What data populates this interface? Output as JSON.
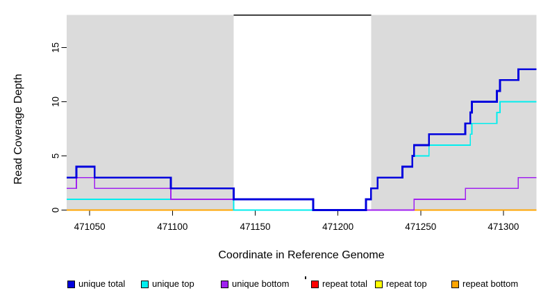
{
  "chart_data": {
    "type": "line",
    "subtype": "step",
    "title": "",
    "xlabel": "Coordinate in Reference Genome",
    "ylabel": "Read Coverage Depth",
    "xlim": [
      471036,
      471320
    ],
    "ylim": [
      0,
      18
    ],
    "x_ticks": [
      471050,
      471100,
      471150,
      471200,
      471250,
      471300
    ],
    "y_ticks": [
      0,
      5,
      10,
      15
    ],
    "grid": false,
    "background_shading": {
      "color": "#DBDBDB",
      "regions": [
        [
          471036,
          471137
        ],
        [
          471220,
          471320
        ]
      ]
    },
    "top_segment": {
      "y": 18,
      "x": [
        471137,
        471220
      ],
      "color": "#000000"
    },
    "series": [
      {
        "name": "repeat total",
        "color": "#FF0000",
        "width": 1.4,
        "steps": [
          [
            471036,
            0
          ]
        ]
      },
      {
        "name": "repeat top",
        "color": "#FFFF00",
        "width": 1.4,
        "steps": [
          [
            471036,
            0
          ]
        ]
      },
      {
        "name": "repeat bottom",
        "color": "#FFA500",
        "width": 1.7,
        "steps": [
          [
            471036,
            0
          ]
        ]
      },
      {
        "name": "unique top",
        "color": "#00EEEE",
        "width": 1.8,
        "steps": [
          [
            471036,
            1
          ],
          [
            471137,
            0
          ],
          [
            471217,
            1
          ],
          [
            471220,
            2
          ],
          [
            471224,
            3
          ],
          [
            471239,
            4
          ],
          [
            471245,
            5
          ],
          [
            471255,
            6
          ],
          [
            471280,
            7
          ],
          [
            471281,
            8
          ],
          [
            471296,
            9
          ],
          [
            471298,
            10
          ]
        ]
      },
      {
        "name": "unique bottom",
        "color": "#A020F0",
        "width": 1.7,
        "steps": [
          [
            471036,
            2
          ],
          [
            471042,
            3
          ],
          [
            471053,
            2
          ],
          [
            471099,
            1
          ],
          [
            471185,
            0
          ],
          [
            471246,
            1
          ],
          [
            471277,
            2
          ],
          [
            471309,
            3
          ]
        ]
      },
      {
        "name": "unique total",
        "color": "#0000DD",
        "width": 2.8,
        "steps": [
          [
            471036,
            3
          ],
          [
            471042,
            4
          ],
          [
            471053,
            3
          ],
          [
            471099,
            2
          ],
          [
            471137,
            1
          ],
          [
            471185,
            0
          ],
          [
            471217,
            1
          ],
          [
            471220,
            2
          ],
          [
            471224,
            3
          ],
          [
            471239,
            4
          ],
          [
            471245,
            5
          ],
          [
            471246,
            6
          ],
          [
            471255,
            7
          ],
          [
            471277,
            8
          ],
          [
            471280,
            9
          ],
          [
            471281,
            10
          ],
          [
            471296,
            11
          ],
          [
            471298,
            12
          ],
          [
            471309,
            13
          ]
        ]
      }
    ],
    "legend": [
      {
        "label": "unique total",
        "color": "#0000DD"
      },
      {
        "label": "unique top",
        "color": "#00EEEE"
      },
      {
        "label": "unique bottom",
        "color": "#A020F0"
      },
      {
        "label": "repeat total",
        "color": "#FF0000"
      },
      {
        "label": "repeat top",
        "color": "#FFFF00"
      },
      {
        "label": "repeat bottom",
        "color": "#FFA500"
      }
    ],
    "legend_position": "bottom-horizontal"
  }
}
